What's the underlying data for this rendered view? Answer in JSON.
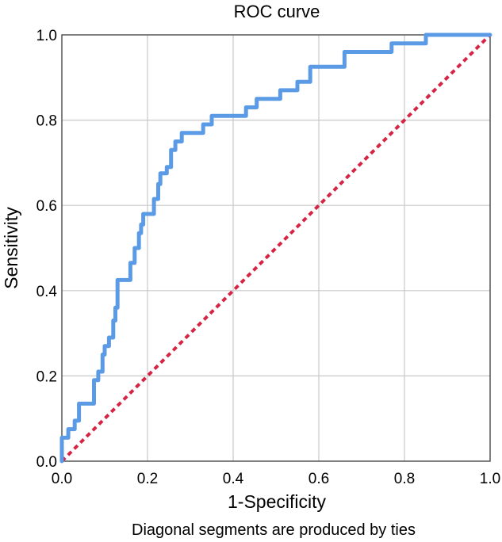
{
  "chart_data": {
    "type": "line",
    "title": "ROC curve",
    "xlabel": "1-Specificity",
    "ylabel": "Sensitivity",
    "footnote": "Diagonal segments are produced by ties",
    "xlim": [
      0,
      1
    ],
    "ylim": [
      0,
      1
    ],
    "grid": true,
    "xticks": [
      "0.0",
      "0.2",
      "0.4",
      "0.6",
      "0.8",
      "1.0"
    ],
    "yticks": [
      "0.0",
      "0.2",
      "0.4",
      "0.6",
      "0.8",
      "1.0"
    ],
    "series": [
      {
        "name": "ROC",
        "color": "#5b9be6",
        "style": "solid",
        "x": [
          0.0,
          0.0,
          0.002,
          0.015,
          0.015,
          0.03,
          0.03,
          0.04,
          0.04,
          0.075,
          0.075,
          0.085,
          0.085,
          0.095,
          0.095,
          0.1,
          0.1,
          0.11,
          0.11,
          0.12,
          0.12,
          0.125,
          0.125,
          0.13,
          0.13,
          0.16,
          0.16,
          0.17,
          0.17,
          0.18,
          0.18,
          0.185,
          0.185,
          0.19,
          0.19,
          0.215,
          0.215,
          0.225,
          0.225,
          0.23,
          0.23,
          0.245,
          0.245,
          0.255,
          0.255,
          0.265,
          0.265,
          0.28,
          0.28,
          0.33,
          0.33,
          0.35,
          0.35,
          0.38,
          0.38,
          0.43,
          0.43,
          0.455,
          0.455,
          0.51,
          0.51,
          0.55,
          0.55,
          0.58,
          0.58,
          0.66,
          0.66,
          0.77,
          0.77,
          0.85,
          0.85,
          1.0
        ],
        "y": [
          0.0,
          0.055,
          0.055,
          0.055,
          0.075,
          0.075,
          0.095,
          0.095,
          0.135,
          0.135,
          0.19,
          0.19,
          0.21,
          0.21,
          0.25,
          0.25,
          0.27,
          0.27,
          0.29,
          0.29,
          0.33,
          0.33,
          0.36,
          0.36,
          0.425,
          0.425,
          0.465,
          0.465,
          0.5,
          0.5,
          0.535,
          0.535,
          0.555,
          0.555,
          0.58,
          0.58,
          0.615,
          0.615,
          0.65,
          0.65,
          0.675,
          0.675,
          0.69,
          0.69,
          0.73,
          0.73,
          0.75,
          0.75,
          0.77,
          0.77,
          0.79,
          0.79,
          0.81,
          0.81,
          0.81,
          0.81,
          0.83,
          0.83,
          0.85,
          0.85,
          0.87,
          0.87,
          0.89,
          0.89,
          0.925,
          0.925,
          0.96,
          0.96,
          0.98,
          0.98,
          1.0,
          1.0
        ]
      },
      {
        "name": "Reference line",
        "color": "#d62445",
        "style": "dashed",
        "x": [
          0,
          1
        ],
        "y": [
          0,
          1
        ]
      }
    ]
  }
}
